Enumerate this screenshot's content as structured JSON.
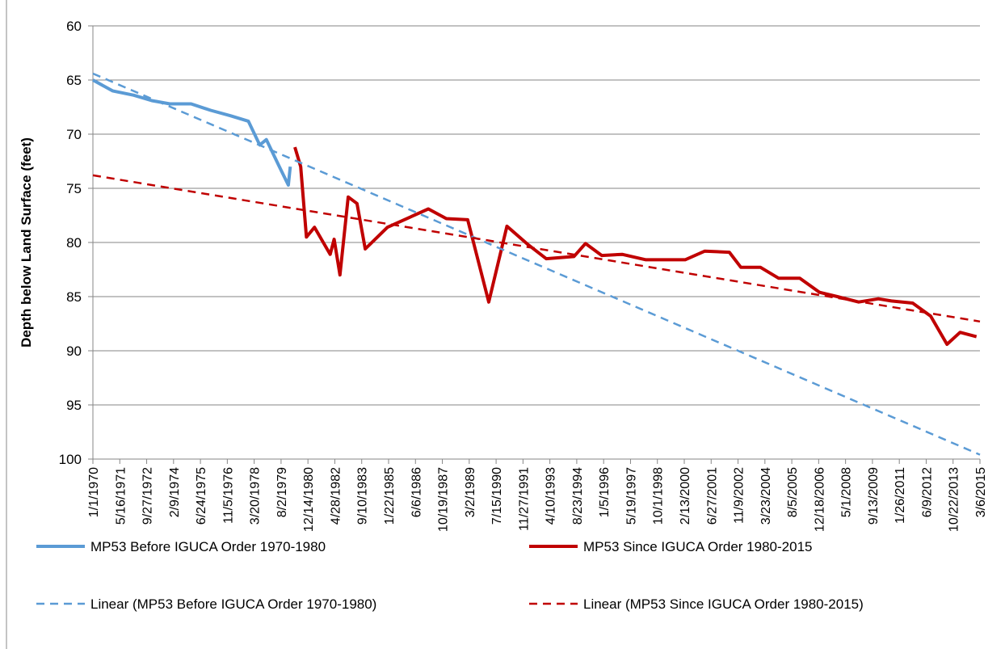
{
  "chart_data": {
    "type": "line",
    "y_label": "Depth below Land Surface (feet)",
    "ylim": [
      60,
      100
    ],
    "y_inverted": true,
    "yticks": [
      60,
      65,
      70,
      75,
      80,
      85,
      90,
      95,
      100
    ],
    "xlim": [
      "1/1/1970",
      "3/6/2015"
    ],
    "xticks": [
      "1/1/1970",
      "5/16/1971",
      "9/27/1972",
      "2/9/1974",
      "6/24/1975",
      "11/5/1976",
      "3/20/1978",
      "8/2/1979",
      "12/14/1980",
      "4/28/1982",
      "9/10/1983",
      "1/22/1985",
      "6/6/1986",
      "10/19/1987",
      "3/2/1989",
      "7/15/1990",
      "11/27/1991",
      "4/10/1993",
      "8/23/1994",
      "1/5/1996",
      "5/19/1997",
      "10/1/1998",
      "2/13/2000",
      "6/27/2001",
      "11/9/2002",
      "3/23/2004",
      "8/5/2005",
      "12/18/2006",
      "5/1/2008",
      "9/13/2009",
      "1/26/2011",
      "6/9/2012",
      "10/22/2013",
      "3/6/2015"
    ],
    "grid": true,
    "series": [
      {
        "name": "MP53 Before IGUCA Order 1970-1980",
        "color": "#5b9bd5",
        "dash": false,
        "x": [
          "1/1/1970",
          "1/1/1971",
          "2/1/1972",
          "1/1/1973",
          "12/1/1973",
          "1/1/1975",
          "1/1/1976",
          "1/1/1977",
          "12/1/1977",
          "7/1/1978",
          "11/1/1978",
          "7/1/1979",
          "12/15/1979",
          "1/20/1980"
        ],
        "values": [
          65,
          66,
          66.4,
          66.9,
          67.2,
          67.2,
          67.8,
          68.3,
          68.8,
          71,
          70.5,
          73,
          74.7,
          73
        ]
      },
      {
        "name": "MP53 Since IGUCA Order 1980-2015",
        "color": "#c00000",
        "dash": false,
        "x": [
          "4/15/1980",
          "8/1/1980",
          "11/15/1980",
          "4/15/1981",
          "2/1/1982",
          "4/15/1982",
          "8/1/1982",
          "1/1/1983",
          "6/15/1983",
          "11/15/1983",
          "1/1/1985",
          "2/1/1987",
          "1/1/1988",
          "2/1/1989",
          "3/1/1990",
          "2/1/1991",
          "3/1/1992",
          "2/1/1993",
          "7/1/1994",
          "2/1/1995",
          "12/1/1995",
          "12/15/1996",
          "3/1/1998",
          "3/1/2000",
          "3/1/2001",
          "6/1/2002",
          "1/1/2003",
          "1/1/2004",
          "12/1/2004",
          "1/1/2006",
          "1/1/2007",
          "12/1/2007",
          "1/1/2009",
          "1/1/2010",
          "9/1/2010",
          "10/1/2011",
          "9/1/2012",
          "7/1/2013",
          "3/1/2014",
          "1/1/2015"
        ],
        "values": [
          71.2,
          73,
          79.5,
          78.6,
          81.1,
          79.7,
          83,
          75.8,
          76.4,
          80.6,
          78.6,
          76.9,
          77.8,
          77.9,
          85.5,
          78.5,
          80.2,
          81.5,
          81.3,
          80.1,
          81.2,
          81.1,
          81.6,
          81.6,
          80.8,
          80.9,
          82.3,
          82.3,
          83.3,
          83.3,
          84.6,
          85,
          85.5,
          85.2,
          85.4,
          85.6,
          86.8,
          89.4,
          88.3,
          88.7
        ]
      },
      {
        "name": "Linear (MP53 Before IGUCA Order 1970-1980)",
        "color": "#5b9bd5",
        "dash": true,
        "x": [
          "1/1/1970",
          "3/6/2015"
        ],
        "values": [
          64.4,
          99.6
        ]
      },
      {
        "name": "Linear (MP53 Since IGUCA Order 1980-2015)",
        "color": "#c00000",
        "dash": true,
        "x": [
          "1/1/1970",
          "3/6/2015"
        ],
        "values": [
          73.8,
          87.3
        ]
      }
    ]
  }
}
